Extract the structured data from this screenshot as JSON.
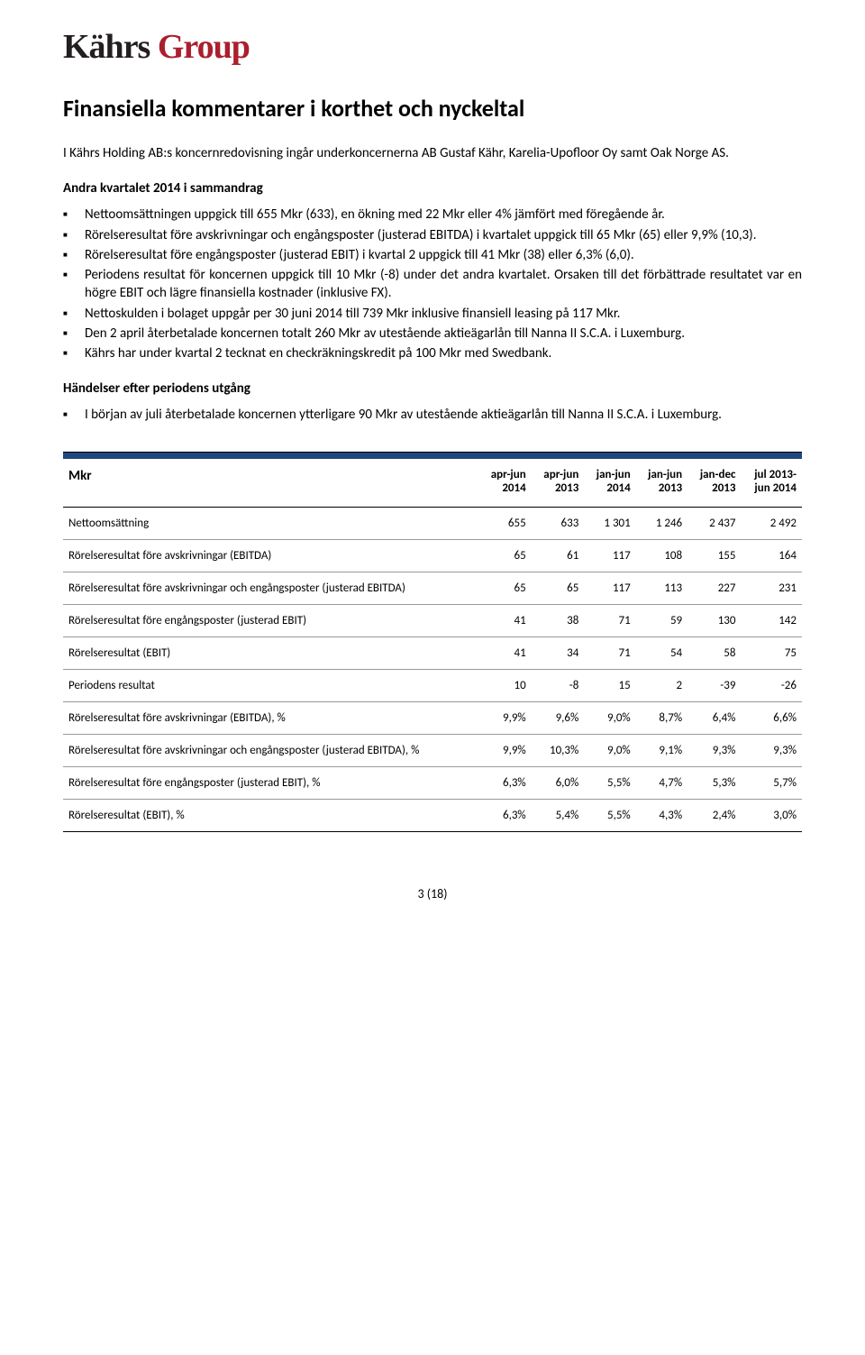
{
  "logo": {
    "part1": "Kährs ",
    "part2": "Group"
  },
  "heading": "Finansiella kommentarer i korthet och nyckeltal",
  "intro": "I Kährs Holding AB:s koncernredovisning ingår underkoncernerna AB Gustaf Kähr, Karelia-Upofloor Oy samt Oak Norge AS.",
  "section1_title": "Andra kvartalet 2014 i sammandrag",
  "bullets1": [
    "Nettoomsättningen uppgick till 655 Mkr (633), en ökning med 22 Mkr eller 4% jämfört med föregående år.",
    "Rörelseresultat före avskrivningar och engångsposter (justerad EBITDA) i kvartalet uppgick till 65 Mkr (65) eller 9,9% (10,3).",
    "Rörelseresultat före engångsposter (justerad EBIT) i kvartal 2 uppgick till 41 Mkr (38) eller 6,3% (6,0).",
    "Periodens resultat för koncernen uppgick till 10 Mkr (-8) under det andra kvartalet. Orsaken till det förbättrade resultatet var en högre EBIT och lägre finansiella kostnader (inklusive FX).",
    "Nettoskulden i bolaget uppgår per 30 juni 2014 till 739 Mkr inklusive finansiell leasing på 117 Mkr.",
    "Den 2 april återbetalade koncernen totalt 260 Mkr av utestående aktieägarlån till Nanna II S.C.A. i Luxemburg.",
    "Kährs har under kvartal 2 tecknat en checkräkningskredit på 100 Mkr med Swedbank."
  ],
  "section2_title": "Händelser efter periodens utgång",
  "bullets2": [
    "I början av juli återbetalade koncernen ytterligare 90 Mkr av utestående aktieägarlån till Nanna II S.C.A. i Luxemburg."
  ],
  "table": {
    "header_label": "Mkr",
    "columns": [
      {
        "l1": "apr-jun",
        "l2": "2014"
      },
      {
        "l1": "apr-jun",
        "l2": "2013"
      },
      {
        "l1": "jan-jun",
        "l2": "2014"
      },
      {
        "l1": "jan-jun",
        "l2": "2013"
      },
      {
        "l1": "jan-dec",
        "l2": "2013"
      },
      {
        "l1": "jul 2013-",
        "l2": "jun 2014"
      }
    ],
    "rows": [
      {
        "label": "Nettoomsättning",
        "v": [
          "655",
          "633",
          "1 301",
          "1 246",
          "2 437",
          "2 492"
        ]
      },
      {
        "label": "Rörelseresultat före avskrivningar (EBITDA)",
        "v": [
          "65",
          "61",
          "117",
          "108",
          "155",
          "164"
        ]
      },
      {
        "label": "Rörelseresultat före avskrivningar och engångsposter (justerad EBITDA)",
        "v": [
          "65",
          "65",
          "117",
          "113",
          "227",
          "231"
        ]
      },
      {
        "label": "Rörelseresultat före engångsposter (justerad EBIT)",
        "v": [
          "41",
          "38",
          "71",
          "59",
          "130",
          "142"
        ]
      },
      {
        "label": "Rörelseresultat (EBIT)",
        "v": [
          "41",
          "34",
          "71",
          "54",
          "58",
          "75"
        ]
      },
      {
        "label": "Periodens resultat",
        "v": [
          "10",
          "-8",
          "15",
          "2",
          "-39",
          "-26"
        ]
      },
      {
        "label": "Rörelseresultat före avskrivningar (EBITDA), %",
        "v": [
          "9,9%",
          "9,6%",
          "9,0%",
          "8,7%",
          "6,4%",
          "6,6%"
        ]
      },
      {
        "label": "Rörelseresultat före avskrivningar och engångsposter (justerad EBITDA), %",
        "v": [
          "9,9%",
          "10,3%",
          "9,0%",
          "9,1%",
          "9,3%",
          "9,3%"
        ]
      },
      {
        "label": "Rörelseresultat före engångsposter (justerad EBIT), %",
        "v": [
          "6,3%",
          "6,0%",
          "5,5%",
          "4,7%",
          "5,3%",
          "5,7%"
        ]
      },
      {
        "label": "Rörelseresultat (EBIT), %",
        "v": [
          "6,3%",
          "5,4%",
          "5,5%",
          "4,3%",
          "2,4%",
          "3,0%"
        ]
      }
    ]
  },
  "page_number": "3 (18)",
  "colors": {
    "brand_red": "#aa1f2e",
    "brand_dark": "#231f20",
    "bar_blue": "#1f497d",
    "border_gray": "#999999"
  }
}
